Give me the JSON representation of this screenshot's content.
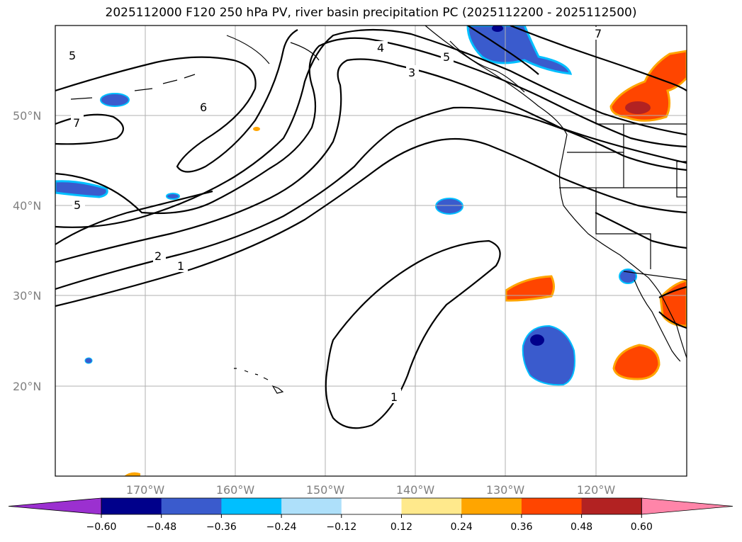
{
  "title": "2025112000 F120 250 hPa PV, river basin precipitation PC (2025112200 - 2025112500)",
  "axes": {
    "lat_labels": [
      "50°N",
      "40°N",
      "30°N",
      "20°N"
    ],
    "lon_labels": [
      "170°W",
      "160°W",
      "150°W",
      "140°W",
      "130°W",
      "120°W"
    ]
  },
  "contour_labels": [
    "5",
    "7",
    "6",
    "4",
    "3",
    "5",
    "7",
    "5",
    "2",
    "1",
    "1"
  ],
  "colorbar": {
    "ticks": [
      "−0.60",
      "−0.48",
      "−0.36",
      "−0.24",
      "−0.12",
      "0.12",
      "0.24",
      "0.36",
      "0.48",
      "0.60"
    ],
    "colors": [
      "#9b30d0",
      "#00008b",
      "#3a5bcd",
      "#00bfff",
      "#aee0fa",
      "#ffffff",
      "#ffe98c",
      "#ffa500",
      "#ff4500",
      "#b22222",
      "#ff85a9"
    ]
  }
}
